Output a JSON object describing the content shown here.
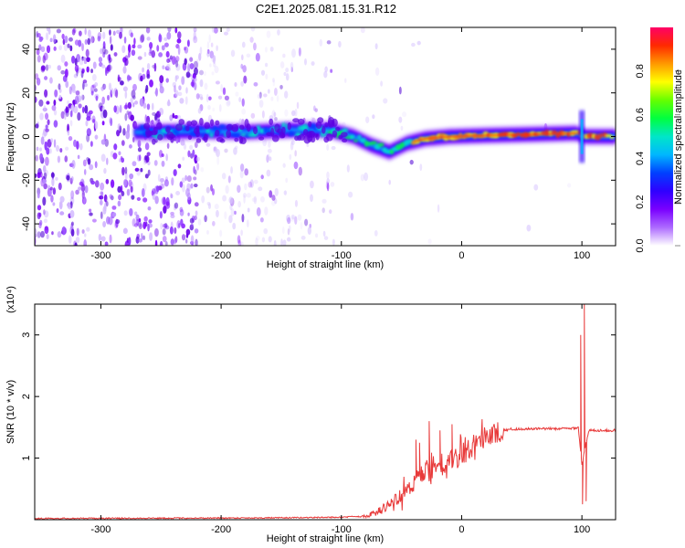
{
  "title": "C2E1.2025.081.15.31.R12",
  "chart_data": [
    {
      "type": "heatmap",
      "xlabel": "Height of straight line (km)",
      "ylabel": "Frequency (Hz)",
      "xlim": [
        -355,
        128
      ],
      "ylim": [
        -50,
        50
      ],
      "xticks": [
        -300,
        -200,
        -100,
        0,
        100
      ],
      "yticks": [
        -40,
        -20,
        0,
        20,
        40
      ],
      "colorbar": {
        "label": "Normalized spectral amplitude",
        "range": [
          0.0,
          1.0
        ],
        "ticks": [
          0.0,
          0.2,
          0.4,
          0.6,
          0.8
        ],
        "colors": [
          "#ffffff",
          "#ad6bff",
          "#7a00ff",
          "#2f00ff",
          "#0040ff",
          "#00b7ff",
          "#00e6c8",
          "#00ff40",
          "#66ff00",
          "#ffff00",
          "#ff9900",
          "#ff2a00",
          "#ff0066"
        ]
      },
      "centerline": [
        {
          "x": -265,
          "f": 2
        },
        {
          "x": -220,
          "f": 2.5
        },
        {
          "x": -180,
          "f": 2
        },
        {
          "x": -140,
          "f": 3
        },
        {
          "x": -110,
          "f": 3
        },
        {
          "x": -90,
          "f": 0
        },
        {
          "x": -75,
          "f": -4
        },
        {
          "x": -60,
          "f": -7
        },
        {
          "x": -45,
          "f": -3
        },
        {
          "x": -30,
          "f": -1
        },
        {
          "x": -10,
          "f": 0
        },
        {
          "x": 20,
          "f": 0.5
        },
        {
          "x": 60,
          "f": 1
        },
        {
          "x": 95,
          "f": 1.5
        },
        {
          "x": 103,
          "f": 0
        },
        {
          "x": 128,
          "f": 0
        }
      ]
    },
    {
      "type": "line",
      "xlabel": "Height of straight line (km)",
      "ylabel": "SNR (10 * v/v)",
      "yscale_label": "(x10⁴)",
      "xlim": [
        -355,
        128
      ],
      "ylim": [
        0,
        3.5
      ],
      "xticks": [
        -300,
        -200,
        -100,
        0,
        100
      ],
      "yticks": [
        1,
        2,
        3
      ],
      "series": [
        {
          "color": "#e83a3a",
          "envelope": [
            {
              "x": -355,
              "y": 0.02
            },
            {
              "x": -150,
              "y": 0.03
            },
            {
              "x": -100,
              "y": 0.04
            },
            {
              "x": -80,
              "y": 0.06
            },
            {
              "x": -70,
              "y": 0.12
            },
            {
              "x": -60,
              "y": 0.25
            },
            {
              "x": -50,
              "y": 0.4
            },
            {
              "x": -40,
              "y": 0.6
            },
            {
              "x": -30,
              "y": 0.75
            },
            {
              "x": -20,
              "y": 0.85
            },
            {
              "x": -10,
              "y": 0.95
            },
            {
              "x": 0,
              "y": 1.05
            },
            {
              "x": 10,
              "y": 1.2
            },
            {
              "x": 20,
              "y": 1.33
            },
            {
              "x": 30,
              "y": 1.43
            },
            {
              "x": 40,
              "y": 1.47
            },
            {
              "x": 90,
              "y": 1.48
            },
            {
              "x": 97,
              "y": 1.5
            },
            {
              "x": 100,
              "y": 0.9
            },
            {
              "x": 103,
              "y": 1.2
            },
            {
              "x": 106,
              "y": 1.45
            },
            {
              "x": 128,
              "y": 1.45
            }
          ],
          "spikes": [
            {
              "x": -38,
              "y": 1.3
            },
            {
              "x": -35,
              "y": 1.25
            },
            {
              "x": -27,
              "y": 1.6
            },
            {
              "x": -18,
              "y": 1.45
            },
            {
              "x": -8,
              "y": 1.55
            },
            {
              "x": 99,
              "y": 3.0
            },
            {
              "x": 100.5,
              "y": 0.25
            },
            {
              "x": 102,
              "y": 3.5
            },
            {
              "x": 103.5,
              "y": 0.3
            }
          ]
        }
      ]
    }
  ]
}
